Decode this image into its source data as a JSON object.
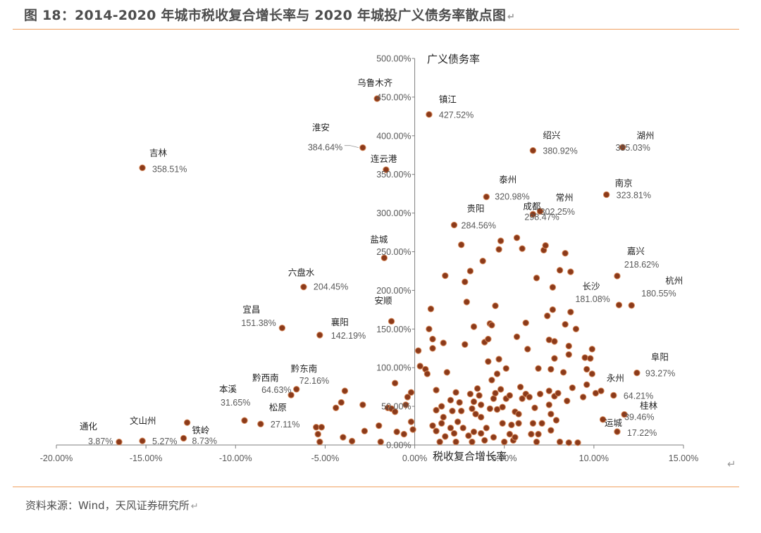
{
  "figure": {
    "title": "图 18：2014-2020 年城市税收复合增长率与 2020 年城投广义债务率散点图",
    "source": "资料来源：Wind，天风证券研究所"
  },
  "colors": {
    "marker": "#8b3a1a",
    "marker_edge": "#d6895b",
    "rule": "#f0a060",
    "axis": "#7f7f7f",
    "tick_text": "#595959"
  },
  "chart_data": {
    "type": "scatter",
    "xlabel": "税收复合增长率",
    "ylabel": "广义债务率",
    "xlim": [
      -20,
      15
    ],
    "ylim": [
      0,
      500
    ],
    "x_ticks": [
      -20,
      -15,
      -10,
      -5,
      0,
      5,
      10,
      15
    ],
    "x_tick_labels": [
      "-20.00%",
      "-15.00%",
      "-10.00%",
      "-5.00%",
      "0.00%",
      "5.00%",
      "10.00%",
      "15.00%"
    ],
    "y_ticks": [
      0,
      50,
      100,
      150,
      200,
      250,
      300,
      350,
      400,
      450,
      500
    ],
    "y_tick_labels": [
      "0.00%",
      "50.00%",
      "100.00%",
      "150.00%",
      "200.00%",
      "250.00%",
      "300.00%",
      "350.00%",
      "400.00%",
      "450.00%",
      "500.00%"
    ],
    "grid": false,
    "labeled_points": [
      {
        "city": "乌鲁木齐",
        "value_label": "",
        "x": -2.1,
        "y": 448
      },
      {
        "city": "镇江",
        "value_label": "427.52%",
        "x": 0.8,
        "y": 427.52
      },
      {
        "city": "淮安",
        "value_label": "384.64%",
        "x": -2.9,
        "y": 384.64
      },
      {
        "city": "连云港",
        "value_label": "",
        "x": -1.6,
        "y": 356
      },
      {
        "city": "吉林",
        "value_label": "358.51%",
        "x": -15.2,
        "y": 358.51
      },
      {
        "city": "绍兴",
        "value_label": "380.92%",
        "x": 6.6,
        "y": 380.92
      },
      {
        "city": "湖州",
        "value_label": "385.03%",
        "x": 11.6,
        "y": 385.03
      },
      {
        "city": "泰州",
        "value_label": "320.98%",
        "x": 4.0,
        "y": 320.98
      },
      {
        "city": "南京",
        "value_label": "323.81%",
        "x": 10.7,
        "y": 323.81
      },
      {
        "city": "常州",
        "value_label": "302.25%",
        "x": 7.0,
        "y": 302.25
      },
      {
        "city": "贵阳",
        "value_label": "284.56%",
        "x": 2.2,
        "y": 284.56
      },
      {
        "city": "成都",
        "value_label": "298.47%",
        "x": 6.6,
        "y": 298.47
      },
      {
        "city": "盐城",
        "value_label": "",
        "x": -1.7,
        "y": 242
      },
      {
        "city": "嘉兴",
        "value_label": "218.62%",
        "x": 11.3,
        "y": 218.62
      },
      {
        "city": "六盘水",
        "value_label": "204.45%",
        "x": -6.2,
        "y": 204.45
      },
      {
        "city": "杭州",
        "value_label": "180.55%",
        "x": 12.1,
        "y": 180.55
      },
      {
        "city": "长沙",
        "value_label": "181.08%",
        "x": 11.4,
        "y": 181.08
      },
      {
        "city": "安顺",
        "value_label": "",
        "x": -1.3,
        "y": 160
      },
      {
        "city": "宜昌",
        "value_label": "151.38%",
        "x": -7.4,
        "y": 151.38
      },
      {
        "city": "襄阳",
        "value_label": "142.19%",
        "x": -5.3,
        "y": 142.19
      },
      {
        "city": "阜阳",
        "value_label": "93.27%",
        "x": 12.4,
        "y": 93.27
      },
      {
        "city": "黔东南",
        "value_label": "72.16%",
        "x": -6.6,
        "y": 72.16
      },
      {
        "city": "黔西南",
        "value_label": "64.63%",
        "x": -6.9,
        "y": 64.63
      },
      {
        "city": "永州",
        "value_label": "64.21%",
        "x": 11.1,
        "y": 64.21
      },
      {
        "city": "本溪",
        "value_label": "31.65%",
        "x": -9.5,
        "y": 31.65
      },
      {
        "city": "松原",
        "value_label": "27.11%",
        "x": -8.6,
        "y": 27.11
      },
      {
        "city": "桂林",
        "value_label": "39.46%",
        "x": 11.7,
        "y": 39.46
      },
      {
        "city": "运城",
        "value_label": "17.22%",
        "x": 11.3,
        "y": 17.22
      },
      {
        "city": "通化",
        "value_label": "3.87%",
        "x": -16.5,
        "y": 3.87
      },
      {
        "city": "文山州",
        "value_label": "5.27%",
        "x": -15.2,
        "y": 5.27
      },
      {
        "city": "铁岭",
        "value_label": "8.73%",
        "x": -12.9,
        "y": 8.73
      }
    ],
    "unlabeled_points": [
      [
        -12.7,
        29
      ],
      [
        -5.5,
        23
      ],
      [
        -5.2,
        23
      ],
      [
        -5.4,
        14
      ],
      [
        -5.3,
        4
      ],
      [
        -4.4,
        48
      ],
      [
        -4.1,
        55
      ],
      [
        -3.9,
        70
      ],
      [
        -4.0,
        10
      ],
      [
        -3.5,
        5
      ],
      [
        -2.9,
        52
      ],
      [
        -2.8,
        18
      ],
      [
        -2.0,
        25
      ],
      [
        -1.9,
        4
      ],
      [
        -1.5,
        48
      ],
      [
        -1.3,
        47
      ],
      [
        -1.1,
        80
      ],
      [
        -1.0,
        17
      ],
      [
        -1.1,
        43
      ],
      [
        -0.6,
        14
      ],
      [
        -0.5,
        52
      ],
      [
        -0.4,
        62
      ],
      [
        -0.2,
        68
      ],
      [
        -0.2,
        30
      ],
      [
        -0.1,
        20
      ],
      [
        0.2,
        122
      ],
      [
        0.3,
        102
      ],
      [
        0.6,
        98
      ],
      [
        0.7,
        92
      ],
      [
        0.9,
        176
      ],
      [
        0.8,
        150
      ],
      [
        1.0,
        137
      ],
      [
        1.0,
        125
      ],
      [
        1.0,
        25
      ],
      [
        1.2,
        45
      ],
      [
        1.2,
        71
      ],
      [
        1.2,
        18
      ],
      [
        1.4,
        4
      ],
      [
        1.5,
        28
      ],
      [
        1.5,
        50
      ],
      [
        1.6,
        132
      ],
      [
        1.6,
        36
      ],
      [
        1.7,
        11
      ],
      [
        1.7,
        219
      ],
      [
        1.8,
        94
      ],
      [
        2.0,
        58
      ],
      [
        2.1,
        44
      ],
      [
        2.0,
        22
      ],
      [
        2.2,
        15
      ],
      [
        2.3,
        68
      ],
      [
        2.3,
        4
      ],
      [
        2.4,
        30
      ],
      [
        2.5,
        55
      ],
      [
        2.6,
        44
      ],
      [
        2.6,
        259
      ],
      [
        2.7,
        22
      ],
      [
        2.8,
        211
      ],
      [
        2.8,
        130
      ],
      [
        2.9,
        185
      ],
      [
        3.0,
        12
      ],
      [
        3.1,
        225
      ],
      [
        3.1,
        66
      ],
      [
        3.2,
        4
      ],
      [
        3.2,
        47
      ],
      [
        3.3,
        153
      ],
      [
        3.3,
        17
      ],
      [
        3.3,
        56
      ],
      [
        3.4,
        40
      ],
      [
        3.5,
        73
      ],
      [
        3.6,
        64
      ],
      [
        3.7,
        52
      ],
      [
        3.7,
        36
      ],
      [
        3.7,
        15
      ],
      [
        3.8,
        238
      ],
      [
        3.9,
        6
      ],
      [
        3.9,
        133
      ],
      [
        4.0,
        22
      ],
      [
        4.1,
        137
      ],
      [
        4.1,
        108
      ],
      [
        4.2,
        47
      ],
      [
        4.2,
        157
      ],
      [
        4.3,
        155
      ],
      [
        4.3,
        84
      ],
      [
        4.4,
        60
      ],
      [
        4.4,
        10
      ],
      [
        4.5,
        180
      ],
      [
        4.5,
        67
      ],
      [
        4.6,
        92
      ],
      [
        4.6,
        46
      ],
      [
        4.7,
        111
      ],
      [
        4.7,
        253
      ],
      [
        4.8,
        264
      ],
      [
        4.8,
        72
      ],
      [
        4.9,
        49
      ],
      [
        4.9,
        28
      ],
      [
        5.0,
        4
      ],
      [
        5.1,
        99
      ],
      [
        5.1,
        60
      ],
      [
        5.3,
        14
      ],
      [
        5.3,
        64
      ],
      [
        5.4,
        26
      ],
      [
        5.5,
        6
      ],
      [
        5.6,
        10
      ],
      [
        5.6,
        43
      ],
      [
        5.7,
        268
      ],
      [
        5.7,
        140
      ],
      [
        5.8,
        40
      ],
      [
        5.8,
        28
      ],
      [
        5.9,
        75
      ],
      [
        6.0,
        254
      ],
      [
        6.0,
        60
      ],
      [
        6.2,
        66
      ],
      [
        6.2,
        158
      ],
      [
        6.3,
        124
      ],
      [
        6.4,
        62
      ],
      [
        6.5,
        14
      ],
      [
        6.6,
        28
      ],
      [
        6.7,
        48
      ],
      [
        6.8,
        216
      ],
      [
        6.8,
        4
      ],
      [
        6.9,
        99
      ],
      [
        6.9,
        14
      ],
      [
        7.0,
        66
      ],
      [
        7.1,
        28
      ],
      [
        7.2,
        252
      ],
      [
        7.3,
        258
      ],
      [
        7.4,
        167
      ],
      [
        7.5,
        136
      ],
      [
        7.5,
        70
      ],
      [
        7.5,
        52
      ],
      [
        7.6,
        98
      ],
      [
        7.6,
        40
      ],
      [
        7.6,
        19
      ],
      [
        7.7,
        204
      ],
      [
        7.7,
        175
      ],
      [
        7.8,
        134
      ],
      [
        7.8,
        112
      ],
      [
        7.8,
        63
      ],
      [
        7.9,
        32
      ],
      [
        8.0,
        67
      ],
      [
        8.1,
        226
      ],
      [
        8.1,
        4
      ],
      [
        8.3,
        94
      ],
      [
        8.4,
        248
      ],
      [
        8.4,
        156
      ],
      [
        8.5,
        57
      ],
      [
        8.6,
        128
      ],
      [
        8.6,
        117
      ],
      [
        8.6,
        3
      ],
      [
        8.7,
        224
      ],
      [
        8.7,
        172
      ],
      [
        8.8,
        74
      ],
      [
        9.0,
        150
      ],
      [
        9.1,
        3
      ],
      [
        9.4,
        62
      ],
      [
        9.5,
        113
      ],
      [
        9.6,
        98
      ],
      [
        9.6,
        78
      ],
      [
        9.8,
        112
      ],
      [
        9.9,
        92
      ],
      [
        9.9,
        124
      ],
      [
        10.1,
        67
      ],
      [
        10.4,
        70
      ],
      [
        10.5,
        33
      ]
    ]
  }
}
